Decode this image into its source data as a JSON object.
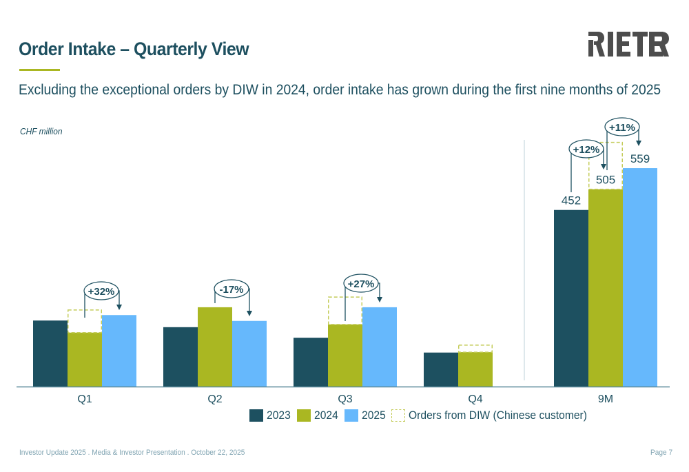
{
  "header": {
    "title": "Order Intake – Quarterly View",
    "subtitle": "Excluding the exceptional orders by DIW in 2024, order intake has grown during the first nine months of 2025",
    "logo_text": "RIETER"
  },
  "footer": {
    "left": "Investor Update 2025 . Media & Investor Presentation . October 22, 2025",
    "right": "Page 7"
  },
  "colors": {
    "y2023": "#1d5060",
    "y2024": "#aab722",
    "y2025": "#66b8fc",
    "diw_outline": "#c4cc5a",
    "text": "#1d4f5f",
    "axis": "#5a8a99",
    "divider": "#c8d8de"
  },
  "legend": [
    {
      "key": "y2023",
      "label": "2023",
      "style": "solid"
    },
    {
      "key": "y2024",
      "label": "2024",
      "style": "solid"
    },
    {
      "key": "y2025",
      "label": "2025",
      "style": "solid"
    },
    {
      "key": "diw",
      "label": "Orders from DIW (Chinese customer)",
      "style": "dashed"
    }
  ],
  "chart_data": {
    "type": "bar",
    "unit_label": "CHF million",
    "categories": [
      "Q1",
      "Q2",
      "Q3",
      "Q4",
      "9M"
    ],
    "series": [
      {
        "name": "2023",
        "values": [
          169,
          152,
          125,
          87,
          452
        ]
      },
      {
        "name": "2024",
        "values": [
          138,
          203,
          159,
          88,
          505
        ]
      },
      {
        "name": "2025",
        "values": [
          183,
          168,
          203,
          null,
          559
        ]
      }
    ],
    "diw_stacked_on_2024": [
      58,
      0,
      70,
      18,
      120
    ],
    "data_labels": {
      "9M": {
        "2023": "452",
        "2024": "505",
        "2025": "559"
      }
    },
    "annotations": [
      {
        "category": "Q1",
        "from": "2024",
        "to": "2025",
        "label": "+32%"
      },
      {
        "category": "Q2",
        "from": "2024",
        "to": "2025",
        "label": "-17%"
      },
      {
        "category": "Q3",
        "from": "2024",
        "to": "2025",
        "label": "+27%"
      },
      {
        "category": "9M",
        "from": "2023",
        "to": "2024",
        "label": "+12%"
      },
      {
        "category": "9M",
        "from": "2024",
        "to": "2025",
        "label": "+11%"
      }
    ],
    "ylim": [
      0,
      640
    ],
    "grid": false,
    "separator_before": "9M",
    "legend_position": "bottom",
    "xlabel": "",
    "ylabel": ""
  }
}
